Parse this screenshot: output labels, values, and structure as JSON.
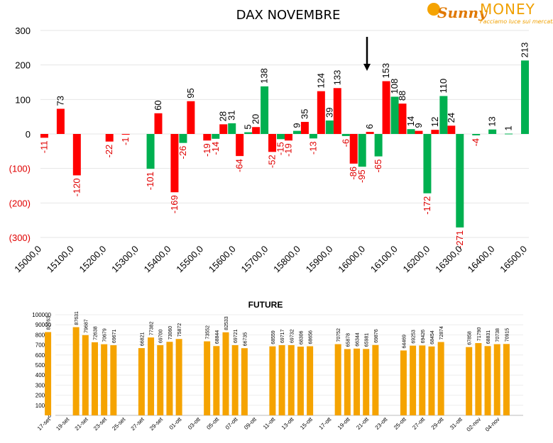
{
  "logo": {
    "brand_sunny": "Sunny",
    "brand_money": "MONEY",
    "tagline": "Facciamo luce sui mercati"
  },
  "colors": {
    "positive": "#00b050",
    "negative": "#ff0000",
    "future_bar": "#f5a300",
    "axis_negative_text": "#e00000",
    "text": "#000000"
  },
  "chart_data": [
    {
      "type": "bar",
      "title": "DAX NOVEMBRE",
      "xlabel": "",
      "ylabel": "",
      "ylim": [
        -300,
        300
      ],
      "yticks": [
        "300",
        "200",
        "100",
        "0",
        "(100)",
        "(200)",
        "(300)"
      ],
      "ytick_values": [
        300,
        200,
        100,
        0,
        -100,
        -200,
        -300
      ],
      "xticks": [
        "15000,0",
        "15100,0",
        "15200,0",
        "15300,0",
        "15400,0",
        "15500,0",
        "15600,0",
        "15700,0",
        "15800,0",
        "15900,0",
        "16000,0",
        "16100,0",
        "16200,0",
        "16300,0",
        "16400,0",
        "16500,0"
      ],
      "grid": true,
      "marker": "arrow at 16000",
      "series": [
        {
          "color": "negative",
          "values": [
            -11,
            73,
            -120,
            0,
            -22,
            -1,
            0,
            60,
            -169,
            95,
            -19,
            28,
            -64,
            20,
            -52,
            -19,
            35,
            124,
            133,
            -86,
            6,
            153,
            88,
            9,
            12,
            24,
            0,
            0,
            0,
            0
          ]
        },
        {
          "color": "positive",
          "values": [
            0,
            0,
            0,
            0,
            0,
            0,
            -101,
            0,
            -26,
            0,
            -14,
            31,
            5,
            138,
            -15,
            9,
            -13,
            39,
            -6,
            -95,
            -65,
            108,
            14,
            -172,
            110,
            -271,
            -4,
            13,
            1,
            213
          ]
        }
      ],
      "labels_negative_series": [
        "-11",
        "73",
        "-120",
        "",
        "-22",
        "-1",
        "",
        "60",
        "-169",
        "95",
        "-19",
        "28",
        "-64",
        "20",
        "-52",
        "-19",
        "35",
        "124",
        "133",
        "-86",
        "6",
        "153",
        "88",
        "9",
        "12",
        "24",
        "",
        "",
        "",
        ""
      ],
      "labels_positive_series": [
        "",
        "",
        "",
        "",
        "",
        "",
        "-101",
        "",
        "-26",
        "",
        "-14",
        "31",
        "5",
        "138",
        "-15",
        "9",
        "-13",
        "39",
        "-6",
        "-95",
        "-65",
        "108",
        "14",
        "-172",
        "110",
        "-271",
        "-4",
        "13",
        "1",
        "213"
      ]
    },
    {
      "type": "bar",
      "title": "FUTURE",
      "xlabel": "",
      "ylabel": "",
      "ylim": [
        0,
        100000
      ],
      "yticks": [
        "100000",
        "90000",
        "80000",
        "70000",
        "60000",
        "50000",
        "40000",
        "30000",
        "20000",
        "10000",
        "0"
      ],
      "ytick_values": [
        100000,
        90000,
        80000,
        70000,
        60000,
        50000,
        40000,
        30000,
        20000,
        10000,
        0
      ],
      "categories": [
        "17-set",
        "",
        "19-set",
        "",
        "21-set",
        "",
        "23-set",
        "",
        "25-set",
        "",
        "27-set",
        "",
        "29-set",
        "",
        "01-ott",
        "",
        "03-ott",
        "",
        "05-ott",
        "",
        "07-ott",
        "",
        "09-ott",
        "",
        "11-ott",
        "",
        "13-ott",
        "",
        "15-ott",
        "",
        "17-ott",
        "",
        "19-ott",
        "",
        "21-ott",
        "",
        "23-ott",
        "",
        "25-ott",
        "",
        "27-ott",
        "",
        "29-ott",
        "",
        "31-ott",
        "",
        "02-nov",
        "",
        "04-nov",
        ""
      ],
      "values": [
        82763,
        null,
        null,
        87631,
        79687,
        72638,
        70679,
        69671,
        null,
        null,
        66821,
        77382,
        69700,
        73060,
        75872,
        null,
        null,
        73552,
        68844,
        82533,
        69721,
        66735,
        null,
        null,
        68559,
        69717,
        69732,
        68306,
        68656,
        null,
        null,
        70752,
        65878,
        66344,
        65981,
        69876,
        null,
        null,
        64469,
        69253,
        69426,
        68454,
        72874,
        null,
        null,
        67858,
        71790,
        68831,
        70738,
        70915
      ],
      "labels": [
        "82763",
        "",
        "",
        "87631",
        "79687",
        "72638",
        "70679",
        "69671",
        "",
        "",
        "66821",
        "77382",
        "69700",
        "73060",
        "75872",
        "",
        "",
        "73552",
        "68844",
        "82533",
        "69721",
        "66735",
        "",
        "",
        "68559",
        "69717",
        "69732",
        "68306",
        "68656",
        "",
        "",
        "70752",
        "65878",
        "66344",
        "65981",
        "69876",
        "",
        "",
        "64469",
        "69253",
        "69426",
        "68454",
        "72874",
        "",
        "",
        "67858",
        "71790",
        "68831",
        "70738",
        "70915"
      ]
    }
  ]
}
